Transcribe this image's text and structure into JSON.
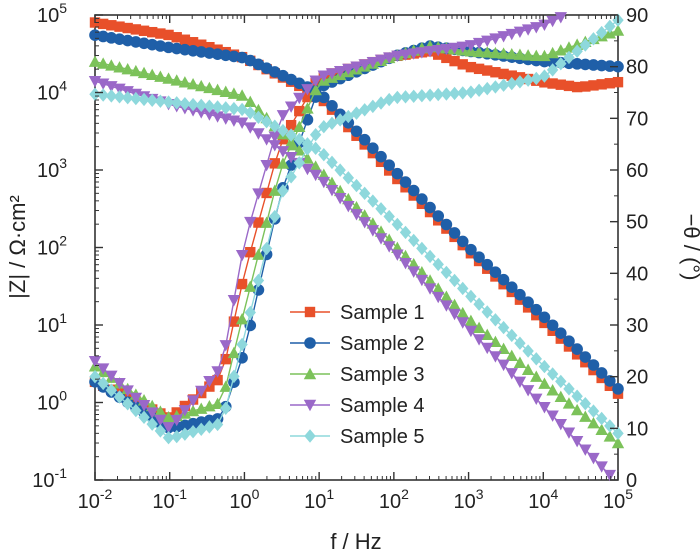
{
  "chart_data": {
    "type": "scatter",
    "xlabel": "f / Hz",
    "ylabel_left": "|Z| / Ω·cm²",
    "ylabel_right": "−θ / (°)",
    "x_scale": "log",
    "xlim": [
      0.01,
      100000
    ],
    "y_left_scale": "log",
    "y_left_lim": [
      0.1,
      100000
    ],
    "y_right_lim": [
      0,
      90
    ],
    "x_ticks": [
      {
        "base": "10",
        "exp": "-2",
        "value": 0.01
      },
      {
        "base": "10",
        "exp": "-1",
        "value": 0.1
      },
      {
        "base": "10",
        "exp": "0",
        "value": 1
      },
      {
        "base": "10",
        "exp": "1",
        "value": 10
      },
      {
        "base": "10",
        "exp": "2",
        "value": 100
      },
      {
        "base": "10",
        "exp": "3",
        "value": 1000
      },
      {
        "base": "10",
        "exp": "4",
        "value": 10000
      },
      {
        "base": "10",
        "exp": "5",
        "value": 100000
      }
    ],
    "y_left_ticks": [
      {
        "base": "10",
        "exp": "-1",
        "value": 0.1
      },
      {
        "base": "10",
        "exp": "0",
        "value": 1
      },
      {
        "base": "10",
        "exp": "1",
        "value": 10
      },
      {
        "base": "10",
        "exp": "2",
        "value": 100
      },
      {
        "base": "10",
        "exp": "3",
        "value": 1000
      },
      {
        "base": "10",
        "exp": "4",
        "value": 10000
      },
      {
        "base": "10",
        "exp": "5",
        "value": 100000
      }
    ],
    "y_right_ticks": [
      "0",
      "10",
      "20",
      "30",
      "40",
      "50",
      "60",
      "70",
      "80",
      "90"
    ],
    "grid": false,
    "legend_position": "center-left",
    "series": [
      {
        "name": "Sample 1",
        "color": "#e8502a",
        "marker": "square",
        "modulus_points": [
          [
            0.01,
            80000
          ],
          [
            0.1,
            55000
          ],
          [
            1,
            28000
          ],
          [
            10,
            9000
          ],
          [
            100,
            850
          ],
          [
            1000,
            90
          ],
          [
            10000,
            11
          ],
          [
            100000,
            1.3
          ]
        ],
        "phase_points": [
          [
            0.01,
            19
          ],
          [
            0.1,
            12
          ],
          [
            0.5,
            20
          ],
          [
            1,
            40
          ],
          [
            3,
            65
          ],
          [
            10,
            78
          ],
          [
            100,
            82
          ],
          [
            300,
            83
          ],
          [
            1000,
            80
          ],
          [
            10000,
            77
          ],
          [
            30000,
            76
          ],
          [
            100000,
            77
          ]
        ]
      },
      {
        "name": "Sample 2",
        "color": "#1f5fa8",
        "marker": "circle",
        "modulus_points": [
          [
            0.01,
            55000
          ],
          [
            0.1,
            38000
          ],
          [
            1,
            28000
          ],
          [
            10,
            10000
          ],
          [
            100,
            1000
          ],
          [
            1000,
            100
          ],
          [
            10000,
            13
          ],
          [
            100000,
            1.5
          ]
        ],
        "phase_points": [
          [
            0.01,
            19
          ],
          [
            0.1,
            10
          ],
          [
            0.5,
            12
          ],
          [
            1,
            25
          ],
          [
            3,
            55
          ],
          [
            10,
            76
          ],
          [
            100,
            82
          ],
          [
            300,
            84
          ],
          [
            1000,
            83
          ],
          [
            10000,
            81
          ],
          [
            100000,
            80
          ]
        ]
      },
      {
        "name": "Sample 3",
        "color": "#7cc25a",
        "marker": "triangle-up",
        "modulus_points": [
          [
            0.01,
            25000
          ],
          [
            0.1,
            15000
          ],
          [
            1,
            9000
          ],
          [
            10,
            1000
          ],
          [
            100,
            110
          ],
          [
            1000,
            12
          ],
          [
            10000,
            1.8
          ],
          [
            100000,
            0.3
          ]
        ],
        "phase_points": [
          [
            0.01,
            22
          ],
          [
            0.1,
            12
          ],
          [
            0.5,
            15
          ],
          [
            1,
            33
          ],
          [
            3,
            60
          ],
          [
            10,
            77
          ],
          [
            100,
            82
          ],
          [
            300,
            84
          ],
          [
            1000,
            83
          ],
          [
            10000,
            82
          ],
          [
            100000,
            87
          ]
        ]
      },
      {
        "name": "Sample 4",
        "color": "#9a68c8",
        "marker": "triangle-down",
        "modulus_points": [
          [
            0.01,
            14000
          ],
          [
            0.1,
            7000
          ],
          [
            1,
            4000
          ],
          [
            10,
            800
          ],
          [
            100,
            90
          ],
          [
            1000,
            9
          ],
          [
            10000,
            0.9
          ],
          [
            100000,
            0.09
          ]
        ],
        "phase_points": [
          [
            0.01,
            23
          ],
          [
            0.1,
            10
          ],
          [
            0.5,
            22
          ],
          [
            1,
            46
          ],
          [
            3,
            70
          ],
          [
            10,
            78
          ],
          [
            100,
            82
          ],
          [
            1000,
            84
          ],
          [
            10000,
            88
          ],
          [
            20000,
            90
          ]
        ]
      },
      {
        "name": "Sample 5",
        "color": "#8ed8dc",
        "marker": "diamond",
        "modulus_points": [
          [
            0.01,
            9500
          ],
          [
            0.1,
            7500
          ],
          [
            1,
            6000
          ],
          [
            10,
            1800
          ],
          [
            100,
            220
          ],
          [
            1000,
            25
          ],
          [
            10000,
            3
          ],
          [
            100000,
            0.4
          ]
        ],
        "phase_points": [
          [
            0.01,
            20
          ],
          [
            0.1,
            8
          ],
          [
            0.5,
            11
          ],
          [
            1,
            28
          ],
          [
            3,
            55
          ],
          [
            10,
            68
          ],
          [
            100,
            74
          ],
          [
            1000,
            75
          ],
          [
            10000,
            78
          ],
          [
            100000,
            89
          ]
        ]
      }
    ]
  }
}
